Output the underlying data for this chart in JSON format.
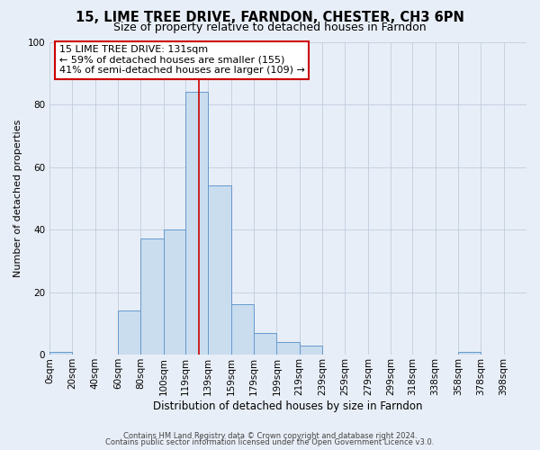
{
  "title1": "15, LIME TREE DRIVE, FARNDON, CHESTER, CH3 6PN",
  "title2": "Size of property relative to detached houses in Farndon",
  "xlabel": "Distribution of detached houses by size in Farndon",
  "ylabel": "Number of detached properties",
  "bin_labels": [
    "0sqm",
    "20sqm",
    "40sqm",
    "60sqm",
    "80sqm",
    "100sqm",
    "119sqm",
    "139sqm",
    "159sqm",
    "179sqm",
    "199sqm",
    "219sqm",
    "239sqm",
    "259sqm",
    "279sqm",
    "299sqm",
    "318sqm",
    "338sqm",
    "358sqm",
    "378sqm",
    "398sqm"
  ],
  "bin_edges": [
    0,
    20,
    40,
    60,
    80,
    100,
    119,
    139,
    159,
    179,
    199,
    219,
    239,
    259,
    279,
    299,
    318,
    338,
    358,
    378,
    398
  ],
  "bar_heights": [
    1,
    0,
    0,
    14,
    37,
    40,
    84,
    54,
    16,
    7,
    4,
    3,
    0,
    0,
    0,
    0,
    0,
    0,
    1,
    0
  ],
  "bar_color": "#c9ddef",
  "bar_edge_color": "#6699cc",
  "property_size": 131,
  "red_line_color": "#cc0000",
  "annotation_line1": "15 LIME TREE DRIVE: 131sqm",
  "annotation_line2": "← 59% of detached houses are smaller (155)",
  "annotation_line3": "41% of semi-detached houses are larger (109) →",
  "annotation_box_facecolor": "#ffffff",
  "annotation_box_edgecolor": "#cc0000",
  "ylim": [
    0,
    100
  ],
  "yticks": [
    0,
    20,
    40,
    60,
    80,
    100
  ],
  "fig_facecolor": "#e8eef7",
  "ax_facecolor": "#e8eef7",
  "grid_color": "#c0ccdd",
  "footer_line1": "Contains HM Land Registry data © Crown copyright and database right 2024.",
  "footer_line2": "Contains public sector information licensed under the Open Government Licence v3.0.",
  "title_fontsize": 10.5,
  "subtitle_fontsize": 9,
  "ylabel_fontsize": 8,
  "xlabel_fontsize": 8.5,
  "tick_labelsize": 7.5,
  "footer_fontsize": 6,
  "annot_fontsize": 8
}
